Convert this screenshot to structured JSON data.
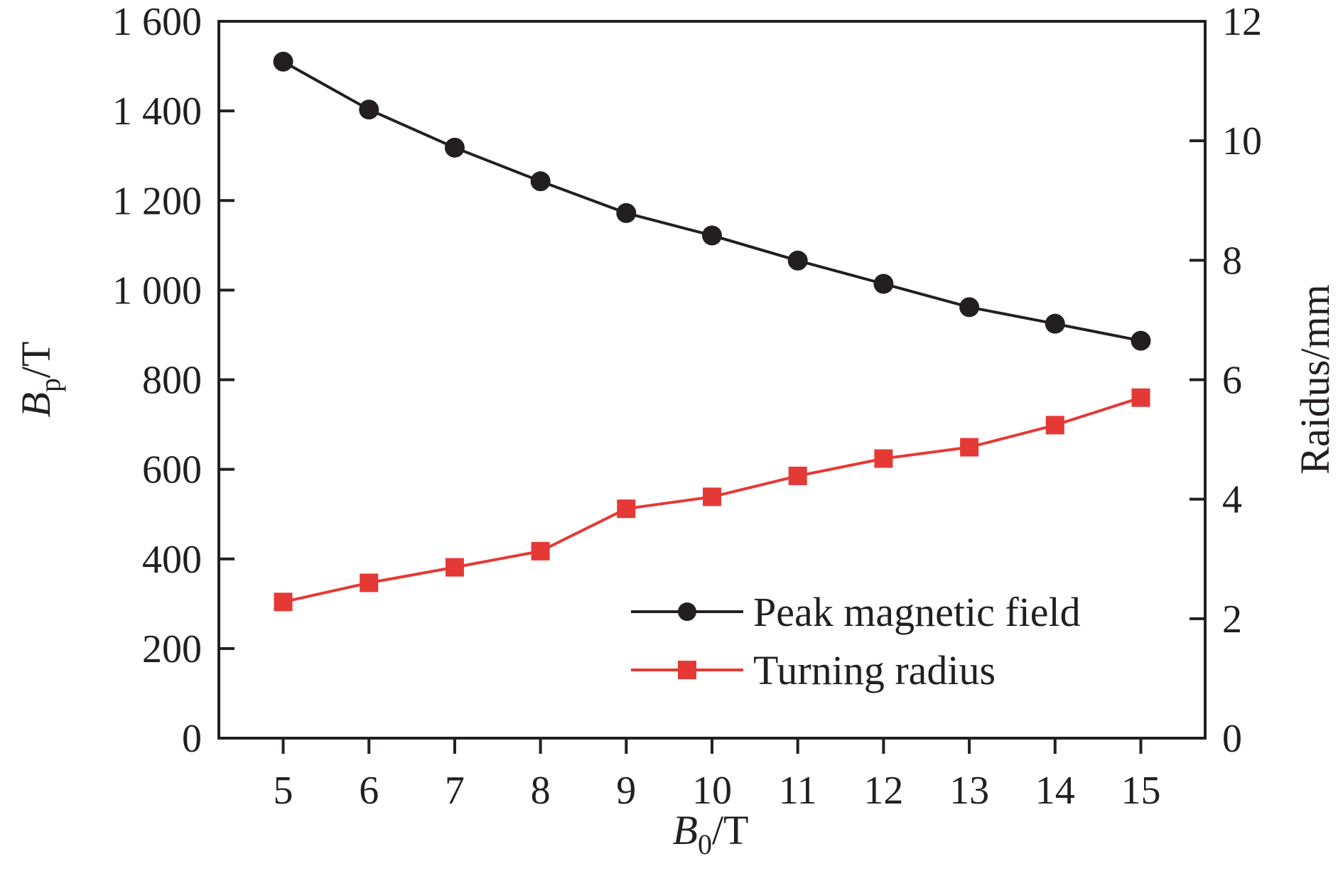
{
  "chart_data": {
    "type": "line",
    "x": [
      5,
      6,
      7,
      8,
      9,
      10,
      11,
      12,
      13,
      14,
      15
    ],
    "x_tick_labels": [
      "5",
      "6",
      "7",
      "8",
      "9",
      "10",
      "11",
      "12",
      "13",
      "14",
      "15"
    ],
    "xlim": [
      4.25,
      15.75
    ],
    "xlabel": {
      "main": "B",
      "sub": "0",
      "unit": "/T"
    },
    "ylabel_left": {
      "main": "B",
      "sub": "p",
      "unit": "/T"
    },
    "ylabel_right": "Raidus/mm",
    "ylim_left": [
      0,
      1600
    ],
    "ylim_right": [
      0,
      12
    ],
    "y_ticks_left": [
      0,
      200,
      400,
      600,
      800,
      1000,
      1200,
      1400,
      1600
    ],
    "y_tick_labels_left": [
      "0",
      "200",
      "400",
      "600",
      "800",
      "1 000",
      "1 200",
      "1 400",
      "1 600"
    ],
    "y_ticks_right": [
      0,
      2,
      4,
      6,
      8,
      10,
      12
    ],
    "y_tick_labels_right": [
      "0",
      "2",
      "4",
      "6",
      "8",
      "10",
      "12"
    ],
    "grid": false,
    "legend_position": "bottom-right",
    "series": [
      {
        "name": "Peak magnetic field",
        "axis": "left",
        "marker": "circle",
        "color": "#231f20",
        "values": [
          1510,
          1403,
          1318,
          1243,
          1172,
          1122,
          1066,
          1014,
          962,
          925,
          887
        ]
      },
      {
        "name": "Turning radius",
        "axis": "right",
        "marker": "square",
        "color": "#e53935",
        "values": [
          2.28,
          2.6,
          2.86,
          3.13,
          3.84,
          4.04,
          4.39,
          4.68,
          4.87,
          5.24,
          5.7
        ]
      }
    ]
  }
}
